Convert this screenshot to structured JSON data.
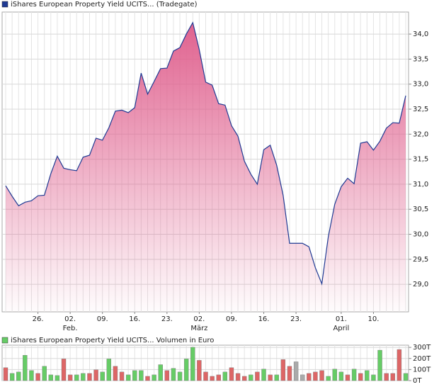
{
  "chart_data": [
    {
      "type": "area",
      "title": "iShares European Property Yield UCITS... (Tradegate)",
      "color": "#1f3a93",
      "fill": "#e0628f",
      "grid": true,
      "categories": [
        null,
        null,
        null,
        null,
        null,
        "26.",
        null,
        null,
        null,
        null,
        "02.",
        null,
        null,
        null,
        null,
        "09.",
        null,
        null,
        null,
        null,
        "16.",
        null,
        null,
        null,
        null,
        "23.",
        null,
        null,
        null,
        null,
        "02.",
        null,
        null,
        null,
        null,
        "09.",
        null,
        null,
        null,
        null,
        "16.",
        null,
        null,
        null,
        null,
        "23.",
        null,
        null,
        null,
        null,
        null,
        null,
        "01.",
        null,
        null,
        null,
        null,
        "10.",
        null,
        null,
        null,
        null,
        null
      ],
      "months": [
        null,
        null,
        null,
        null,
        null,
        null,
        null,
        null,
        null,
        null,
        "Feb.",
        null,
        null,
        null,
        null,
        null,
        null,
        null,
        null,
        null,
        null,
        null,
        null,
        null,
        null,
        null,
        null,
        null,
        null,
        null,
        "März",
        null,
        null,
        null,
        null,
        null,
        null,
        null,
        null,
        null,
        null,
        null,
        null,
        null,
        null,
        null,
        null,
        null,
        null,
        null,
        null,
        null,
        "April",
        null,
        null,
        null,
        null,
        null,
        null,
        null,
        null,
        null,
        null
      ],
      "values": [
        30.97,
        30.76,
        30.57,
        30.64,
        30.67,
        30.77,
        30.78,
        31.21,
        31.56,
        31.32,
        31.29,
        31.27,
        31.54,
        31.58,
        31.92,
        31.88,
        32.13,
        32.46,
        32.48,
        32.43,
        32.53,
        33.22,
        32.8,
        33.05,
        33.31,
        33.32,
        33.66,
        33.73,
        34.0,
        34.23,
        33.69,
        33.04,
        32.98,
        32.61,
        32.58,
        32.17,
        31.96,
        31.46,
        31.2,
        31.0,
        31.69,
        31.78,
        31.38,
        30.78,
        29.82,
        29.82,
        29.82,
        29.75,
        29.33,
        29.01,
        29.95,
        30.6,
        30.95,
        31.12,
        31.01,
        31.82,
        31.85,
        31.68,
        31.86,
        32.12,
        32.23,
        32.22,
        32.77
      ],
      "ylim": [
        28.45,
        34.44
      ],
      "yticks": [
        {
          "value": 29,
          "label": "29,0"
        },
        {
          "value": 29.5,
          "label": "29,5"
        },
        {
          "value": 30,
          "label": "30,0"
        },
        {
          "value": 30.5,
          "label": "30,5"
        },
        {
          "value": 31,
          "label": "31,0"
        },
        {
          "value": 31.5,
          "label": "31,5"
        },
        {
          "value": 32,
          "label": "32,0"
        },
        {
          "value": 32.5,
          "label": "32,5"
        },
        {
          "value": 33,
          "label": "33,0"
        },
        {
          "value": 33.5,
          "label": "33,5"
        },
        {
          "value": 34,
          "label": "34,0"
        }
      ]
    },
    {
      "type": "bar",
      "title": "iShares European Property Yield UCITS... Volumen in Euro",
      "legend_color": "#66cc66",
      "grid": true,
      "values": [
        117,
        65,
        78,
        229,
        91,
        65,
        130,
        52,
        46,
        196,
        52,
        52,
        65,
        65,
        98,
        78,
        196,
        130,
        78,
        52,
        91,
        91,
        39,
        52,
        144,
        91,
        111,
        78,
        196,
        301,
        183,
        78,
        39,
        52,
        78,
        117,
        65,
        39,
        52,
        78,
        104,
        52,
        52,
        190,
        130,
        170,
        52,
        65,
        78,
        91,
        39,
        104,
        78,
        52,
        104,
        65,
        91,
        52,
        275,
        65,
        65,
        281,
        65
      ],
      "colors": [
        "#dd6666",
        "#66cc66",
        "#66cc66",
        "#66cc66",
        "#66cc66",
        "#dd6666",
        "#66cc66",
        "#66cc66",
        "#66cc66",
        "#dd6666",
        "#dd6666",
        "#66cc66",
        "#66cc66",
        "#dd6666",
        "#dd6666",
        "#66cc66",
        "#66cc66",
        "#dd6666",
        "#dd6666",
        "#66cc66",
        "#66cc66",
        "#66cc66",
        "#dd6666",
        "#66cc66",
        "#66cc66",
        "#dd6666",
        "#66cc66",
        "#66cc66",
        "#66cc66",
        "#66cc66",
        "#dd6666",
        "#dd6666",
        "#dd6666",
        "#dd6666",
        "#66cc66",
        "#dd6666",
        "#dd6666",
        "#dd6666",
        "#66cc66",
        "#dd6666",
        "#66cc66",
        "#dd6666",
        "#66cc66",
        "#dd6666",
        "#dd6666",
        "#aaaaaa",
        "#aaaaaa",
        "#dd6666",
        "#dd6666",
        "#dd6666",
        "#66cc66",
        "#66cc66",
        "#66cc66",
        "#dd6666",
        "#66cc66",
        "#dd6666",
        "#66cc66",
        "#66cc66",
        "#66cc66",
        "#dd6666",
        "#dd6666",
        "#dd6666",
        "#66cc66"
      ],
      "ylim": [
        0,
        320
      ],
      "yticks": [
        {
          "value": 0,
          "label": "0T"
        },
        {
          "value": 100,
          "label": "100T"
        },
        {
          "value": 200,
          "label": "200T"
        },
        {
          "value": 300,
          "label": "300T"
        }
      ]
    }
  ]
}
